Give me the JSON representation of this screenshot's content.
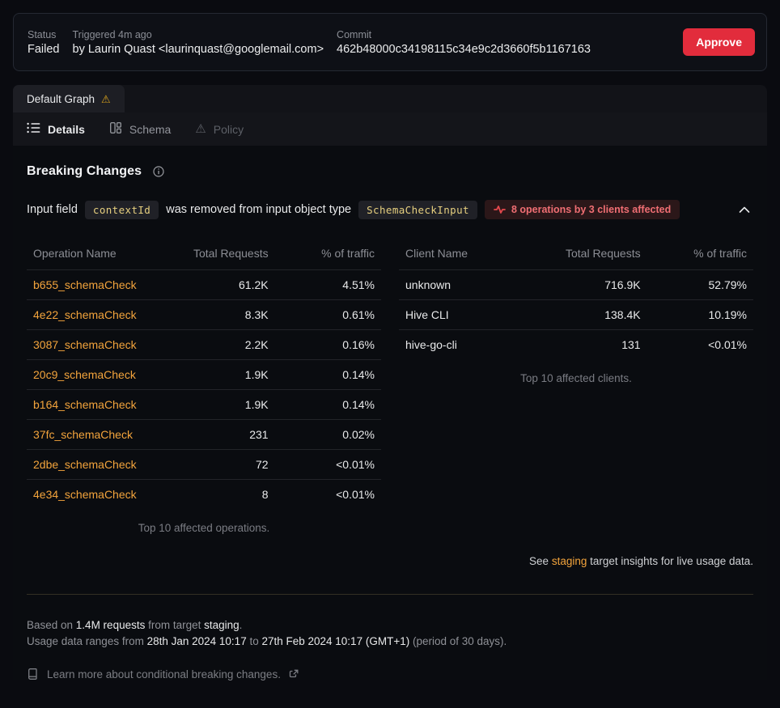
{
  "header": {
    "status_label": "Status",
    "status_value": "Failed",
    "triggered_label": "Triggered 4m ago",
    "triggered_by": "by Laurin Quast <laurinquast@googlemail.com>",
    "commit_label": "Commit",
    "commit_value": "462b48000c34198115c34e9c2d3660f5b1167163",
    "approve_label": "Approve"
  },
  "tabs": {
    "graph_tab_label": "Default Graph",
    "graph_tab_warning": "⚠",
    "toolbar": [
      {
        "label": "Details"
      },
      {
        "label": "Schema"
      },
      {
        "label": "Policy"
      }
    ]
  },
  "breaking": {
    "title": "Breaking Changes",
    "change": {
      "prefix": "Input field",
      "field_code": "contextId",
      "middle": "was removed from input object type",
      "type_code": "SchemaCheckInput",
      "impact_badge": "8 operations by 3 clients affected"
    }
  },
  "operations_table": {
    "headers": [
      "Operation Name",
      "Total Requests",
      "% of traffic"
    ],
    "rows": [
      [
        "b655_schemaCheck",
        "61.2K",
        "4.51%"
      ],
      [
        "4e22_schemaCheck",
        "8.3K",
        "0.61%"
      ],
      [
        "3087_schemaCheck",
        "2.2K",
        "0.16%"
      ],
      [
        "20c9_schemaCheck",
        "1.9K",
        "0.14%"
      ],
      [
        "b164_schemaCheck",
        "1.9K",
        "0.14%"
      ],
      [
        "37fc_schemaCheck",
        "231",
        "0.02%"
      ],
      [
        "2dbe_schemaCheck",
        "72",
        "<0.01%"
      ],
      [
        "4e34_schemaCheck",
        "8",
        "<0.01%"
      ]
    ],
    "caption": "Top 10 affected operations."
  },
  "clients_table": {
    "headers": [
      "Client Name",
      "Total Requests",
      "% of traffic"
    ],
    "rows": [
      [
        "unknown",
        "716.9K",
        "52.79%"
      ],
      [
        "Hive CLI",
        "138.4K",
        "10.19%"
      ],
      [
        "hive-go-cli",
        "131",
        "<0.01%"
      ]
    ],
    "caption": "Top 10 affected clients."
  },
  "insights_note": {
    "prefix": "See ",
    "link": "staging",
    "suffix": " target insights for live usage data."
  },
  "footer": {
    "based_prefix": "Based on ",
    "requests": "1.4M requests",
    "from_target": " from target ",
    "target": "staging",
    "dot": ".",
    "range_prefix": "Usage data ranges from ",
    "date_from": "28th Jan 2024 10:17",
    "to_word": " to ",
    "date_to": "27th Feb 2024 10:17 (GMT+1)",
    "range_suffix": " (period of 30 days).",
    "learn_more": "Learn more about conditional breaking changes."
  },
  "colors": {
    "accent_orange": "#f3a43c",
    "approve_red": "#e22c3c",
    "badge_red_text": "#ef6e73",
    "warning_yellow": "#d9a21c",
    "code_yellow": "#e6cf7f"
  }
}
